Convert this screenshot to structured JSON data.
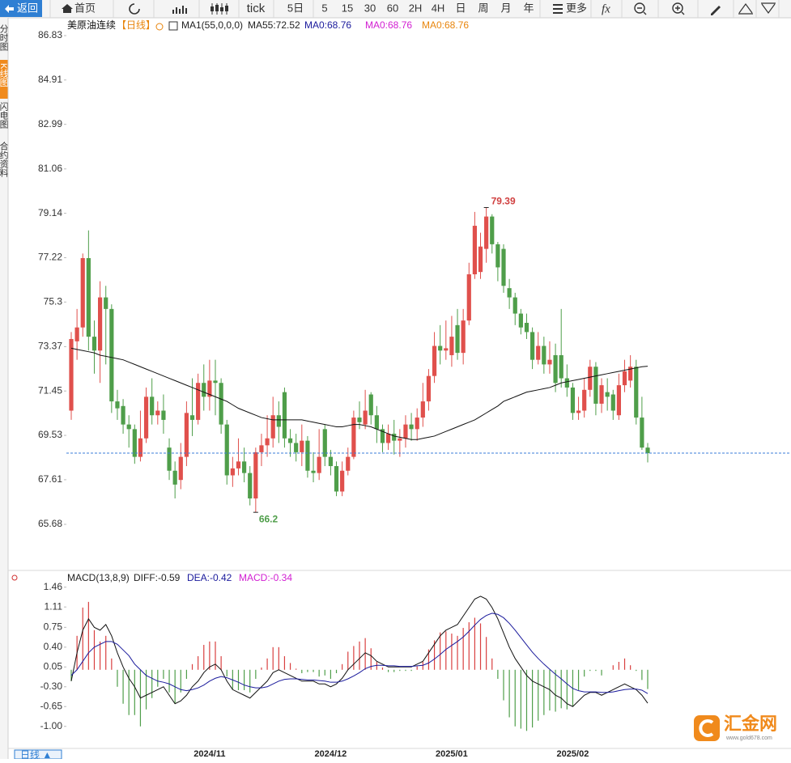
{
  "toolbar": {
    "items": [
      "返回",
      "首页",
      "tick",
      "5日",
      "5",
      "15",
      "30",
      "60",
      "2H",
      "4H",
      "日",
      "周",
      "月",
      "年",
      "更多"
    ]
  },
  "side_tabs": [
    "分时图",
    "K线图",
    "闪电图",
    "合约资料"
  ],
  "chart_data": [
    {
      "type": "candlestick",
      "title": "美原油连续",
      "period": "【日线】",
      "legend": [
        "MA1(55,0,0,0)",
        "MA55:72.52",
        "MA0:68.76",
        "MA0:68.76",
        "MA0:68.76"
      ],
      "legend_colors": [
        "#222222",
        "#222222",
        "#1a1a9c",
        "#d21fd2",
        "#e8850c"
      ],
      "up_color": "#e0504c",
      "down_color": "#4f9e4a",
      "open": [
        70.6,
        73.6,
        74.2,
        77.2,
        73.8,
        73.2,
        75.5,
        75.0,
        71.0,
        70.8,
        70.0,
        69.8,
        68.6,
        69.4,
        71.2,
        70.4,
        70.6,
        69.0,
        68.0,
        67.6,
        68.6,
        70.4,
        70.2,
        71.8,
        71.2,
        71.9,
        71.8,
        70.0,
        67.8,
        68.1,
        68.4,
        67.9,
        66.8,
        68.8,
        69.1,
        69.4,
        70.4,
        71.4,
        69.4,
        69.2,
        68.8,
        69.3,
        68.0,
        67.9,
        69.8,
        68.6,
        68.2,
        67.1,
        68.0,
        68.6,
        70.3,
        70.0,
        71.3,
        70.4,
        69.8,
        69.2,
        69.6,
        69.3,
        69.4,
        70.0,
        69.8,
        70.3,
        71.0,
        72.1,
        73.4,
        73.2,
        73.0,
        74.3,
        73.1,
        74.5,
        76.5,
        76.6,
        77.6,
        79.0,
        77.8,
        77.6,
        75.9,
        75.5,
        74.8,
        74.4,
        74.0,
        72.8,
        73.4,
        72.6,
        73.0,
        73.0,
        72.0,
        71.6,
        70.5,
        70.6,
        71.5,
        72.5,
        70.9,
        71.4,
        71.3,
        70.4,
        71.7,
        71.9,
        72.5,
        70.3,
        69.0
      ],
      "high": [
        74.0,
        75.0,
        77.4,
        78.4,
        74.5,
        76.2,
        76.0,
        75.2,
        71.5,
        71.1,
        70.4,
        70.0,
        70.6,
        71.6,
        72.0,
        71.0,
        71.3,
        69.4,
        68.4,
        69.2,
        71.0,
        72.0,
        72.2,
        72.6,
        72.8,
        72.8,
        72.0,
        70.2,
        68.6,
        69.4,
        69.0,
        68.2,
        69.0,
        69.6,
        70.4,
        71.2,
        71.0,
        71.6,
        69.8,
        69.6,
        70.0,
        69.5,
        68.8,
        69.8,
        70.0,
        68.9,
        68.4,
        68.4,
        69.0,
        70.6,
        71.0,
        71.5,
        71.4,
        70.8,
        70.0,
        70.0,
        70.2,
        69.8,
        70.4,
        70.5,
        70.7,
        71.8,
        72.4,
        74.0,
        74.3,
        74.5,
        74.7,
        75.0,
        75.0,
        77.0,
        79.2,
        78.3,
        79.39,
        79.1,
        77.9,
        77.8,
        76.3,
        75.7,
        75.0,
        74.8,
        74.2,
        74.0,
        73.8,
        73.6,
        73.5,
        75.0,
        72.6,
        71.8,
        71.2,
        72.0,
        72.8,
        72.7,
        72.0,
        72.0,
        71.5,
        72.2,
        72.8,
        73.0,
        72.8,
        71.2,
        69.2
      ],
      "low": [
        70.2,
        72.8,
        73.8,
        73.2,
        72.2,
        71.8,
        72.6,
        70.5,
        70.2,
        69.6,
        69.0,
        68.3,
        68.4,
        69.2,
        70.0,
        70.0,
        69.6,
        67.6,
        66.8,
        67.2,
        68.2,
        69.5,
        70.0,
        70.6,
        70.6,
        70.4,
        69.6,
        67.4,
        67.3,
        67.8,
        67.5,
        66.5,
        66.2,
        68.2,
        68.6,
        69.0,
        69.2,
        69.0,
        68.6,
        68.4,
        68.2,
        67.7,
        67.5,
        67.6,
        68.2,
        67.8,
        66.9,
        66.9,
        67.8,
        68.5,
        69.8,
        69.8,
        70.0,
        69.2,
        68.8,
        68.9,
        68.7,
        68.6,
        69.0,
        69.3,
        69.3,
        69.9,
        70.6,
        71.8,
        72.6,
        72.8,
        72.5,
        72.8,
        72.6,
        74.3,
        76.3,
        76.3,
        77.0,
        77.4,
        76.2,
        75.7,
        75.0,
        74.3,
        73.9,
        73.7,
        72.4,
        72.6,
        72.2,
        72.2,
        71.4,
        71.6,
        71.2,
        70.2,
        70.2,
        70.3,
        71.2,
        70.4,
        70.5,
        70.6,
        70.2,
        70.2,
        71.4,
        71.6,
        70.0,
        68.9,
        68.36
      ],
      "close": [
        73.7,
        74.2,
        77.2,
        73.8,
        73.2,
        75.5,
        75.0,
        71.0,
        70.7,
        70.0,
        69.8,
        68.6,
        69.4,
        71.2,
        70.4,
        70.6,
        70.2,
        68.0,
        67.4,
        68.6,
        70.5,
        70.2,
        71.8,
        71.2,
        71.9,
        71.8,
        70.0,
        67.8,
        68.1,
        68.4,
        67.9,
        66.8,
        68.8,
        69.1,
        69.4,
        70.4,
        69.9,
        69.4,
        69.2,
        68.8,
        69.3,
        68.0,
        67.9,
        68.6,
        68.6,
        68.2,
        67.1,
        68.0,
        68.6,
        70.3,
        70.1,
        70.6,
        70.4,
        69.8,
        69.2,
        69.6,
        69.3,
        69.4,
        70.0,
        69.8,
        70.3,
        71.0,
        72.1,
        73.4,
        73.2,
        73.3,
        73.8,
        73.1,
        74.5,
        76.5,
        78.6,
        77.7,
        79.0,
        77.8,
        76.8,
        76.0,
        75.5,
        74.8,
        74.2,
        74.0,
        72.8,
        73.4,
        72.6,
        72.8,
        71.8,
        72.0,
        71.6,
        70.5,
        70.6,
        71.5,
        72.5,
        70.9,
        71.7,
        71.2,
        70.6,
        71.7,
        72.3,
        72.5,
        70.3,
        69.0,
        68.76
      ],
      "ma_line": {
        "color": "#111111",
        "values": [
          73.3,
          73.25,
          73.2,
          73.15,
          73.1,
          73.0,
          72.95,
          72.9,
          72.85,
          72.8,
          72.7,
          72.6,
          72.5,
          72.4,
          72.3,
          72.2,
          72.1,
          72.0,
          71.9,
          71.8,
          71.7,
          71.6,
          71.5,
          71.4,
          71.3,
          71.2,
          71.1,
          71.0,
          70.85,
          70.7,
          70.6,
          70.5,
          70.4,
          70.3,
          70.25,
          70.2,
          70.2,
          70.2,
          70.2,
          70.2,
          70.2,
          70.15,
          70.1,
          70.05,
          70.0,
          69.95,
          69.9,
          69.9,
          69.95,
          70.0,
          70.0,
          69.95,
          69.9,
          69.8,
          69.7,
          69.6,
          69.5,
          69.45,
          69.4,
          69.35,
          69.35,
          69.4,
          69.45,
          69.5,
          69.6,
          69.7,
          69.8,
          69.9,
          70.0,
          70.1,
          70.2,
          70.35,
          70.5,
          70.65,
          70.8,
          71.0,
          71.1,
          71.2,
          71.3,
          71.4,
          71.45,
          71.5,
          71.55,
          71.6,
          71.7,
          71.8,
          71.85,
          71.9,
          71.95,
          72.0,
          72.05,
          72.1,
          72.15,
          72.2,
          72.25,
          72.3,
          72.35,
          72.4,
          72.45,
          72.5,
          72.52
        ]
      },
      "last_line_color": "#3b7dd8",
      "ylim": [
        63.86,
        87.32
      ],
      "yticks": [
        86.83,
        84.91,
        82.99,
        81.06,
        79.14,
        77.22,
        75.3,
        73.37,
        71.45,
        69.53,
        67.61,
        65.68
      ]
    },
    {
      "type": "macd",
      "legend": [
        "MACD(13,8,9)",
        "DIFF:-0.59",
        "DEA:-0.42",
        "MACD:-0.34"
      ],
      "legend_colors": [
        "#222222",
        "#222222",
        "#1a1a9c",
        "#d21fd2"
      ],
      "categories": [
        null,
        null,
        null,
        null,
        null,
        null,
        null,
        null,
        null,
        null,
        null,
        null,
        null,
        null,
        null,
        null,
        null,
        null,
        null,
        null,
        null,
        null,
        null,
        null,
        "2024/11",
        null,
        null,
        null,
        null,
        null,
        null,
        null,
        null,
        null,
        null,
        null,
        null,
        null,
        null,
        null,
        null,
        null,
        null,
        null,
        null,
        "2024/12",
        null,
        null,
        null,
        null,
        null,
        null,
        null,
        null,
        null,
        null,
        null,
        null,
        null,
        null,
        null,
        null,
        null,
        null,
        null,
        null,
        "2025/01",
        null,
        null,
        null,
        null,
        null,
        null,
        null,
        null,
        null,
        null,
        null,
        null,
        null,
        null,
        null,
        null,
        null,
        null,
        null,
        null,
        "2025/02",
        null,
        null,
        null,
        null,
        null,
        null,
        null,
        null,
        null,
        null,
        null,
        null,
        null
      ],
      "series": [
        {
          "name": "DIFF",
          "color": "#111111",
          "values": [
            -0.2,
            0.3,
            0.7,
            0.9,
            0.75,
            0.7,
            0.8,
            0.6,
            0.3,
            0.05,
            -0.15,
            -0.3,
            -0.5,
            -0.45,
            -0.4,
            -0.35,
            -0.3,
            -0.45,
            -0.6,
            -0.55,
            -0.45,
            -0.3,
            -0.2,
            -0.05,
            0.05,
            0.1,
            0.0,
            -0.2,
            -0.35,
            -0.4,
            -0.45,
            -0.5,
            -0.4,
            -0.3,
            -0.2,
            -0.05,
            0.0,
            -0.05,
            -0.1,
            -0.15,
            -0.2,
            -0.2,
            -0.2,
            -0.25,
            -0.25,
            -0.3,
            -0.25,
            -0.15,
            0.0,
            0.1,
            0.2,
            0.3,
            0.25,
            0.15,
            0.1,
            0.05,
            0.05,
            0.05,
            0.05,
            0.05,
            0.1,
            0.15,
            0.3,
            0.45,
            0.6,
            0.7,
            0.75,
            0.8,
            0.95,
            1.1,
            1.25,
            1.3,
            1.25,
            1.1,
            0.9,
            0.65,
            0.4,
            0.2,
            0.05,
            -0.1,
            -0.2,
            -0.25,
            -0.3,
            -0.35,
            -0.45,
            -0.5,
            -0.6,
            -0.65,
            -0.55,
            -0.45,
            -0.4,
            -0.4,
            -0.45,
            -0.4,
            -0.35,
            -0.3,
            -0.25,
            -0.3,
            -0.35,
            -0.45,
            -0.59
          ]
        },
        {
          "name": "DEA",
          "color": "#1a1a9c",
          "values": [
            -0.1,
            0.0,
            0.15,
            0.3,
            0.4,
            0.45,
            0.5,
            0.5,
            0.45,
            0.35,
            0.25,
            0.1,
            0.0,
            -0.1,
            -0.15,
            -0.2,
            -0.22,
            -0.25,
            -0.3,
            -0.35,
            -0.37,
            -0.35,
            -0.32,
            -0.27,
            -0.2,
            -0.15,
            -0.12,
            -0.14,
            -0.18,
            -0.22,
            -0.27,
            -0.3,
            -0.32,
            -0.32,
            -0.3,
            -0.25,
            -0.2,
            -0.17,
            -0.16,
            -0.16,
            -0.17,
            -0.18,
            -0.18,
            -0.19,
            -0.2,
            -0.22,
            -0.22,
            -0.2,
            -0.16,
            -0.11,
            -0.05,
            0.02,
            0.06,
            0.08,
            0.08,
            0.07,
            0.07,
            0.06,
            0.06,
            0.06,
            0.07,
            0.08,
            0.12,
            0.19,
            0.27,
            0.36,
            0.43,
            0.5,
            0.58,
            0.68,
            0.79,
            0.89,
            0.96,
            1.0,
            0.98,
            0.92,
            0.82,
            0.7,
            0.57,
            0.44,
            0.31,
            0.2,
            0.1,
            0.01,
            -0.08,
            -0.16,
            -0.25,
            -0.33,
            -0.37,
            -0.39,
            -0.39,
            -0.39,
            -0.4,
            -0.4,
            -0.39,
            -0.37,
            -0.35,
            -0.34,
            -0.34,
            -0.36,
            -0.42
          ]
        },
        {
          "name": "MACD",
          "up_color": "#d94040",
          "down_color": "#4f9e4a",
          "values": [
            -0.2,
            0.6,
            1.1,
            1.2,
            0.7,
            0.5,
            0.6,
            0.2,
            -0.3,
            -0.6,
            -0.8,
            -0.8,
            -1.0,
            -0.7,
            -0.5,
            -0.3,
            -0.16,
            -0.4,
            -0.6,
            -0.4,
            -0.16,
            0.1,
            0.24,
            0.44,
            0.5,
            0.5,
            0.24,
            -0.12,
            -0.34,
            -0.36,
            -0.36,
            -0.4,
            -0.16,
            0.04,
            0.2,
            0.4,
            0.4,
            0.24,
            0.12,
            0.02,
            -0.06,
            -0.04,
            -0.04,
            -0.12,
            -0.1,
            -0.16,
            -0.06,
            0.1,
            0.32,
            0.42,
            0.5,
            0.56,
            0.38,
            0.14,
            0.04,
            -0.04,
            -0.04,
            -0.02,
            -0.02,
            -0.02,
            0.06,
            0.14,
            0.36,
            0.52,
            0.66,
            0.68,
            0.64,
            0.6,
            0.74,
            0.84,
            0.92,
            0.82,
            0.58,
            0.2,
            -0.16,
            -0.54,
            -0.84,
            -1.0,
            -1.04,
            -1.08,
            -1.02,
            -0.9,
            -0.8,
            -0.72,
            -0.74,
            -0.68,
            -0.7,
            -0.64,
            -0.36,
            -0.12,
            -0.02,
            -0.02,
            -0.1,
            0.0,
            0.08,
            0.14,
            0.2,
            0.08,
            -0.02,
            -0.18,
            -0.34
          ]
        }
      ],
      "ylim": [
        -1.39,
        1.57
      ],
      "yticks": [
        1.46,
        1.11,
        0.75,
        {
          "value": 0.4,
          "label": "0.40"
        },
        0.05,
        {
          "value": -0.3,
          "label": "-0.30"
        },
        -0.65,
        {
          "value": -1,
          "label": "-1.00"
        }
      ]
    }
  ],
  "footer": {
    "period": "日线 ▲"
  },
  "watermark": {
    "name": "汇金网",
    "url": "www.gold678.com"
  }
}
